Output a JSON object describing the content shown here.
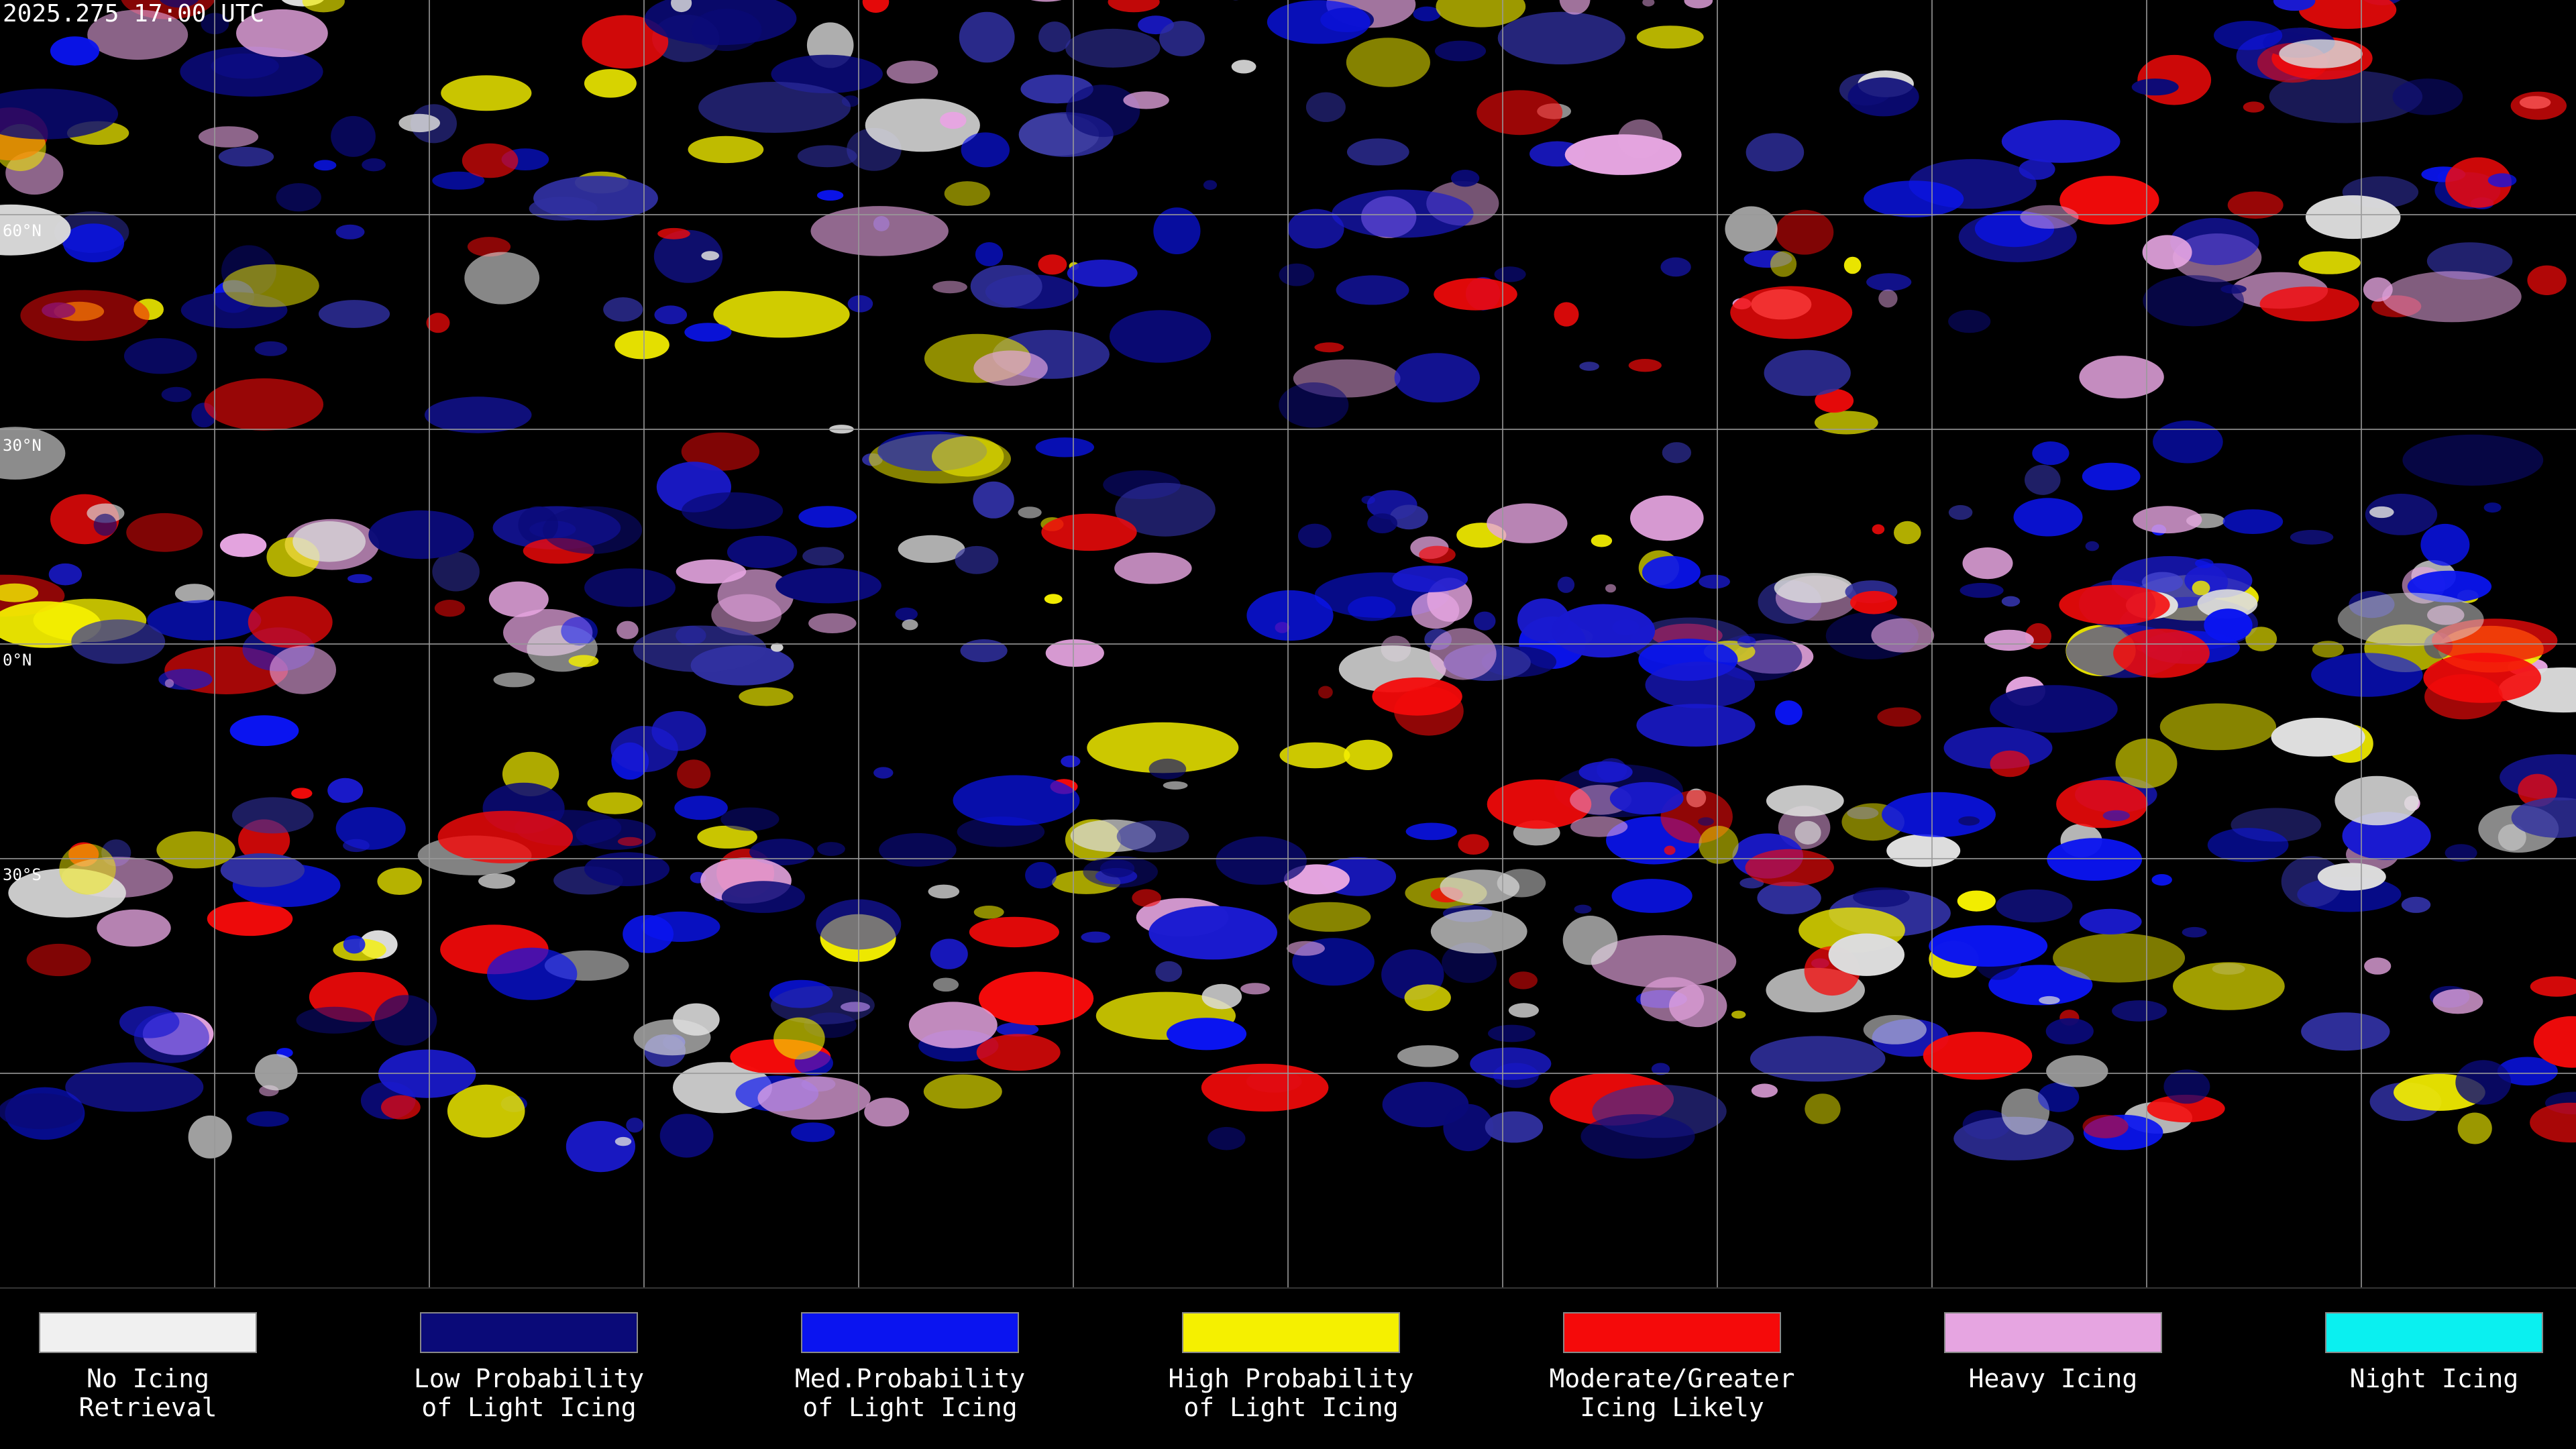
{
  "header": {
    "title": "2025.275 17:00 UTC"
  },
  "lat_labels": [
    "60°N",
    "30°N",
    "0°N",
    "30°S"
  ],
  "legend": [
    {
      "color": "#f0f0f0",
      "lines": [
        "No Icing",
        "Retrieval"
      ]
    },
    {
      "color": "#0a0a78",
      "lines": [
        "Low Probability",
        "of Light Icing"
      ]
    },
    {
      "color": "#0a14f0",
      "lines": [
        "Med.Probability",
        "of Light Icing"
      ]
    },
    {
      "color": "#f5f000",
      "lines": [
        "High Probability",
        "of Light Icing"
      ]
    },
    {
      "color": "#f50a0a",
      "lines": [
        "Moderate/Greater",
        "Icing Likely"
      ]
    },
    {
      "color": "#e6a5e1",
      "lines": [
        "Heavy Icing"
      ]
    },
    {
      "color": "#0af0f0",
      "lines": [
        "Night Icing"
      ]
    }
  ]
}
